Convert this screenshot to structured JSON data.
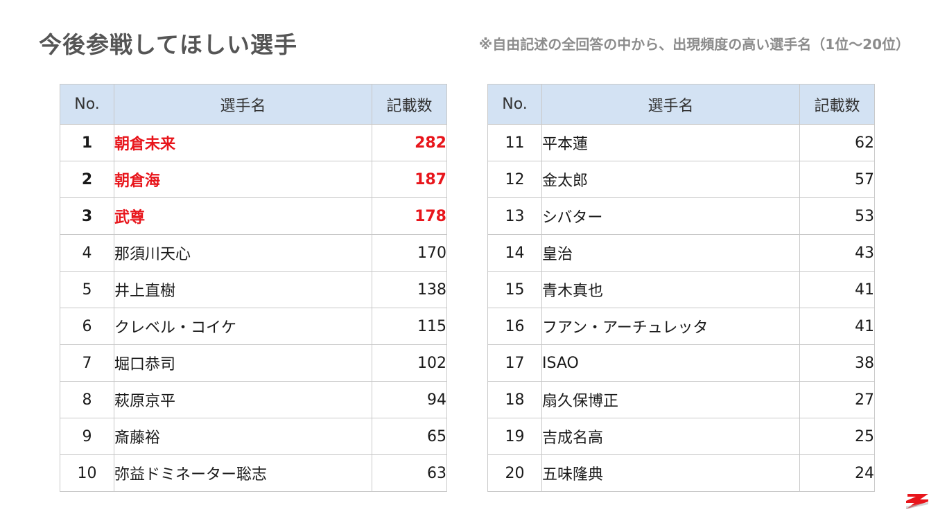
{
  "header": {
    "title": "今後参戦してほしい選手",
    "note": "※自由記述の全回答の中から、出現頻度の高い選手名（1位〜20位）"
  },
  "columns": {
    "no": "No.",
    "name": "選手名",
    "count": "記載数"
  },
  "colors": {
    "header_bg": "#d3e2f3",
    "highlight_red": "#e8151b",
    "title_gray": "#555555",
    "note_gray": "#8c8c8c",
    "logo_red": "#e8151b"
  },
  "icons": {
    "logo": "z-brand-logo"
  },
  "table_left": {
    "rows": [
      {
        "no": "1",
        "name": "朝倉未来",
        "count": "282",
        "highlight": true
      },
      {
        "no": "2",
        "name": "朝倉海",
        "count": "187",
        "highlight": true
      },
      {
        "no": "3",
        "name": "武尊",
        "count": "178",
        "highlight": true
      },
      {
        "no": "4",
        "name": "那須川天心",
        "count": "170",
        "highlight": false
      },
      {
        "no": "5",
        "name": "井上直樹",
        "count": "138",
        "highlight": false
      },
      {
        "no": "6",
        "name": "クレベル・コイケ",
        "count": "115",
        "highlight": false
      },
      {
        "no": "7",
        "name": "堀口恭司",
        "count": "102",
        "highlight": false
      },
      {
        "no": "8",
        "name": "萩原京平",
        "count": "94",
        "highlight": false
      },
      {
        "no": "9",
        "name": "斎藤裕",
        "count": "65",
        "highlight": false
      },
      {
        "no": "10",
        "name": "弥益ドミネーター聡志",
        "count": "63",
        "highlight": false
      }
    ]
  },
  "table_right": {
    "rows": [
      {
        "no": "11",
        "name": "平本蓮",
        "count": "62",
        "highlight": false
      },
      {
        "no": "12",
        "name": "金太郎",
        "count": "57",
        "highlight": false
      },
      {
        "no": "13",
        "name": "シバター",
        "count": "53",
        "highlight": false
      },
      {
        "no": "14",
        "name": "皇治",
        "count": "43",
        "highlight": false
      },
      {
        "no": "15",
        "name": "青木真也",
        "count": "41",
        "highlight": false
      },
      {
        "no": "16",
        "name": "フアン・アーチュレッタ",
        "count": "41",
        "highlight": false
      },
      {
        "no": "17",
        "name": "ISAO",
        "count": "38",
        "highlight": false
      },
      {
        "no": "18",
        "name": "扇久保博正",
        "count": "27",
        "highlight": false
      },
      {
        "no": "19",
        "name": "吉成名高",
        "count": "25",
        "highlight": false
      },
      {
        "no": "20",
        "name": "五味隆典",
        "count": "24",
        "highlight": false
      }
    ]
  }
}
